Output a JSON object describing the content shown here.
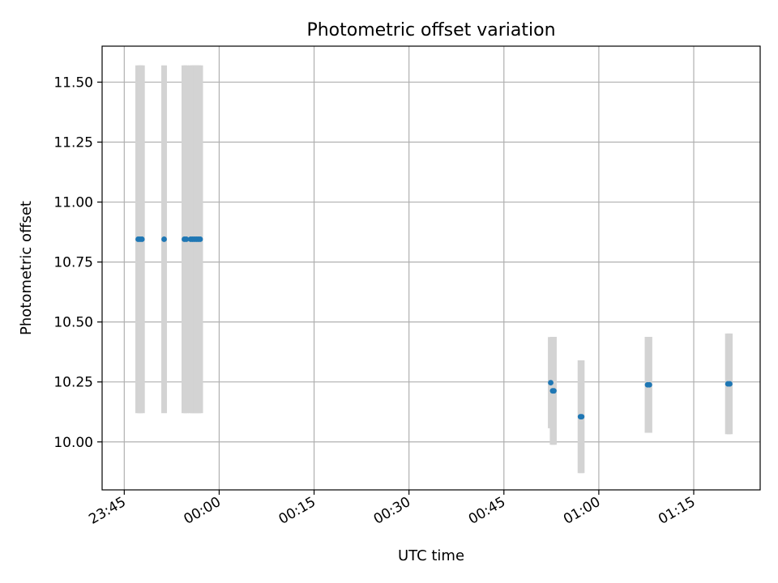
{
  "chart_data": {
    "type": "scatter",
    "title": "Photometric offset variation",
    "xlabel": "UTC time",
    "ylabel": "Photometric offset",
    "x_unit": "UTC time of day (HH:MM), axis spans midnight",
    "xlim": [
      "23:41:30",
      "01:25:30"
    ],
    "ylim": [
      9.8,
      11.65
    ],
    "xticks": [
      "23:45",
      "00:00",
      "00:15",
      "00:30",
      "00:45",
      "01:00",
      "01:15"
    ],
    "yticks": [
      "10.00",
      "10.25",
      "10.50",
      "10.75",
      "11.00",
      "11.25",
      "11.50"
    ],
    "grid": true,
    "series": [
      {
        "marker_color": "#1f77b4",
        "errorbar_color": "#d3d3d3",
        "points": [
          {
            "x": "23:47:12",
            "y": 10.845,
            "yerr": 0.725
          },
          {
            "x": "23:47:30",
            "y": 10.845,
            "yerr": 0.725
          },
          {
            "x": "23:47:48",
            "y": 10.845,
            "yerr": 0.725
          },
          {
            "x": "23:51:18",
            "y": 10.845,
            "yerr": 0.725
          },
          {
            "x": "23:54:30",
            "y": 10.845,
            "yerr": 0.725
          },
          {
            "x": "23:54:48",
            "y": 10.845,
            "yerr": 0.725
          },
          {
            "x": "23:55:30",
            "y": 10.845,
            "yerr": 0.725
          },
          {
            "x": "23:55:48",
            "y": 10.845,
            "yerr": 0.725
          },
          {
            "x": "23:56:06",
            "y": 10.845,
            "yerr": 0.725
          },
          {
            "x": "23:56:24",
            "y": 10.845,
            "yerr": 0.725
          },
          {
            "x": "23:56:42",
            "y": 10.845,
            "yerr": 0.725
          },
          {
            "x": "23:57:00",
            "y": 10.845,
            "yerr": 0.725
          },
          {
            "x": "00:52:24",
            "y": 10.247,
            "yerr": 0.19
          },
          {
            "x": "00:52:42",
            "y": 10.213,
            "yerr": 0.225
          },
          {
            "x": "00:52:54",
            "y": 10.213,
            "yerr": 0.225
          },
          {
            "x": "00:57:06",
            "y": 10.105,
            "yerr": 0.235
          },
          {
            "x": "00:57:18",
            "y": 10.105,
            "yerr": 0.235
          },
          {
            "x": "01:07:42",
            "y": 10.238,
            "yerr": 0.2
          },
          {
            "x": "01:08:00",
            "y": 10.238,
            "yerr": 0.2
          },
          {
            "x": "01:20:24",
            "y": 10.242,
            "yerr": 0.21
          },
          {
            "x": "01:20:42",
            "y": 10.242,
            "yerr": 0.21
          }
        ]
      }
    ]
  }
}
